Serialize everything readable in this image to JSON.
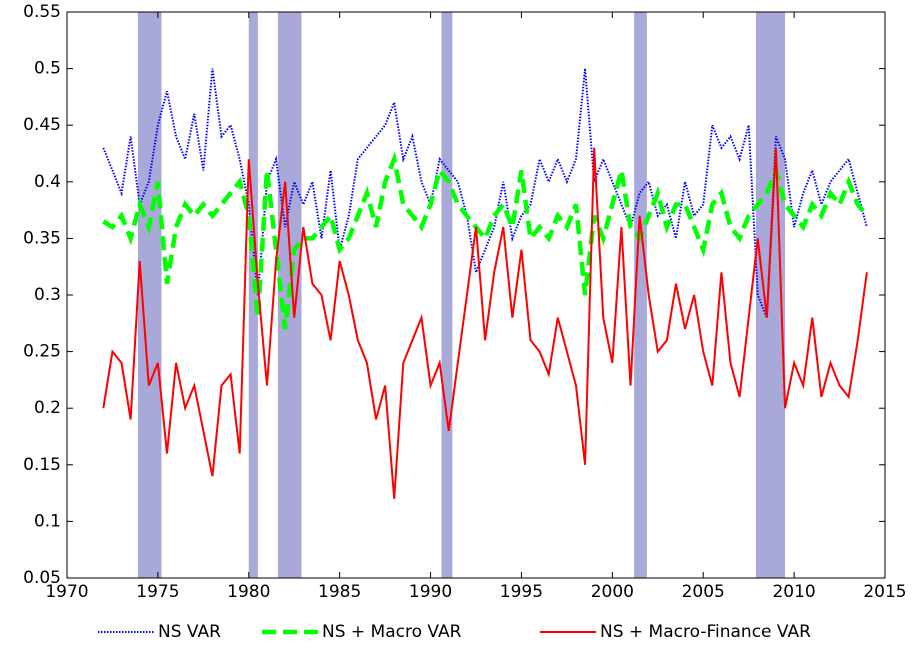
{
  "chart_data": {
    "type": "line",
    "x": [
      1972,
      1972.5,
      1973,
      1973.5,
      1974,
      1974.5,
      1975,
      1975.5,
      1976,
      1976.5,
      1977,
      1977.5,
      1978,
      1978.5,
      1979,
      1979.5,
      1980,
      1980.5,
      1981,
      1981.5,
      1982,
      1982.5,
      1983,
      1983.5,
      1984,
      1984.5,
      1985,
      1985.5,
      1986,
      1986.5,
      1987,
      1987.5,
      1988,
      1988.5,
      1989,
      1989.5,
      1990,
      1990.5,
      1991,
      1991.5,
      1992,
      1992.5,
      1993,
      1993.5,
      1994,
      1994.5,
      1995,
      1995.5,
      1996,
      1996.5,
      1997,
      1997.5,
      1998,
      1998.5,
      1999,
      1999.5,
      2000,
      2000.5,
      2001,
      2001.5,
      2002,
      2002.5,
      2003,
      2003.5,
      2004,
      2004.5,
      2005,
      2005.5,
      2006,
      2006.5,
      2007,
      2007.5,
      2008,
      2008.5,
      2009,
      2009.5,
      2010,
      2010.5,
      2011,
      2011.5,
      2012,
      2012.5,
      2013,
      2013.5,
      2014
    ],
    "series": [
      {
        "name": "NS VAR",
        "color": "#0000ff",
        "style": "dotted",
        "values": [
          0.43,
          0.41,
          0.39,
          0.44,
          0.38,
          0.4,
          0.45,
          0.48,
          0.44,
          0.42,
          0.46,
          0.41,
          0.5,
          0.44,
          0.45,
          0.42,
          0.38,
          0.3,
          0.4,
          0.42,
          0.36,
          0.4,
          0.38,
          0.4,
          0.35,
          0.41,
          0.34,
          0.37,
          0.42,
          0.43,
          0.44,
          0.45,
          0.47,
          0.42,
          0.44,
          0.4,
          0.38,
          0.42,
          0.41,
          0.4,
          0.37,
          0.32,
          0.34,
          0.36,
          0.4,
          0.35,
          0.37,
          0.38,
          0.42,
          0.4,
          0.42,
          0.4,
          0.42,
          0.5,
          0.4,
          0.42,
          0.4,
          0.38,
          0.36,
          0.39,
          0.4,
          0.37,
          0.38,
          0.35,
          0.4,
          0.37,
          0.38,
          0.45,
          0.43,
          0.44,
          0.42,
          0.45,
          0.3,
          0.28,
          0.44,
          0.42,
          0.36,
          0.39,
          0.41,
          0.38,
          0.4,
          0.41,
          0.42,
          0.39,
          0.36
        ]
      },
      {
        "name": "NS + Macro VAR",
        "color": "#00ff00",
        "style": "dashed",
        "values": [
          0.365,
          0.36,
          0.37,
          0.35,
          0.38,
          0.36,
          0.4,
          0.31,
          0.36,
          0.38,
          0.37,
          0.38,
          0.37,
          0.38,
          0.39,
          0.4,
          0.37,
          0.28,
          0.41,
          0.34,
          0.27,
          0.34,
          0.35,
          0.35,
          0.36,
          0.37,
          0.34,
          0.35,
          0.37,
          0.39,
          0.36,
          0.4,
          0.42,
          0.38,
          0.37,
          0.36,
          0.38,
          0.41,
          0.4,
          0.38,
          0.37,
          0.36,
          0.35,
          0.37,
          0.38,
          0.36,
          0.41,
          0.35,
          0.36,
          0.35,
          0.37,
          0.36,
          0.38,
          0.3,
          0.37,
          0.35,
          0.38,
          0.41,
          0.36,
          0.35,
          0.37,
          0.39,
          0.36,
          0.38,
          0.38,
          0.36,
          0.34,
          0.38,
          0.39,
          0.36,
          0.35,
          0.37,
          0.38,
          0.39,
          0.41,
          0.38,
          0.37,
          0.36,
          0.38,
          0.37,
          0.39,
          0.38,
          0.4,
          0.38,
          0.37
        ]
      },
      {
        "name": "NS + Macro-Finance VAR",
        "color": "#ff0000",
        "style": "solid",
        "values": [
          0.2,
          0.25,
          0.24,
          0.19,
          0.33,
          0.22,
          0.24,
          0.16,
          0.24,
          0.2,
          0.22,
          0.18,
          0.14,
          0.22,
          0.23,
          0.16,
          0.42,
          0.31,
          0.22,
          0.33,
          0.4,
          0.28,
          0.36,
          0.31,
          0.3,
          0.26,
          0.33,
          0.3,
          0.26,
          0.24,
          0.19,
          0.22,
          0.12,
          0.24,
          0.26,
          0.28,
          0.22,
          0.24,
          0.18,
          0.24,
          0.3,
          0.36,
          0.26,
          0.32,
          0.36,
          0.28,
          0.34,
          0.26,
          0.25,
          0.23,
          0.28,
          0.25,
          0.22,
          0.15,
          0.43,
          0.28,
          0.24,
          0.36,
          0.22,
          0.37,
          0.3,
          0.25,
          0.26,
          0.31,
          0.27,
          0.3,
          0.25,
          0.22,
          0.32,
          0.24,
          0.21,
          0.28,
          0.35,
          0.28,
          0.43,
          0.2,
          0.24,
          0.22,
          0.28,
          0.21,
          0.24,
          0.22,
          0.21,
          0.26,
          0.32
        ]
      }
    ],
    "shaded_periods": [
      [
        1973.9,
        1975.2
      ],
      [
        1980.0,
        1980.5
      ],
      [
        1981.6,
        1982.9
      ],
      [
        1990.6,
        1991.2
      ],
      [
        2001.2,
        2001.9
      ],
      [
        2007.9,
        2009.5
      ]
    ],
    "shade_color": "#a9a9d9",
    "xlim": [
      1970,
      2015
    ],
    "xticks": [
      1970,
      1975,
      1980,
      1985,
      1990,
      1995,
      2000,
      2005,
      2010,
      2015
    ],
    "ylim": [
      0.05,
      0.55
    ],
    "yticks": [
      0.05,
      0.1,
      0.15,
      0.2,
      0.25,
      0.3,
      0.35,
      0.4,
      0.45,
      0.5,
      0.55
    ]
  }
}
